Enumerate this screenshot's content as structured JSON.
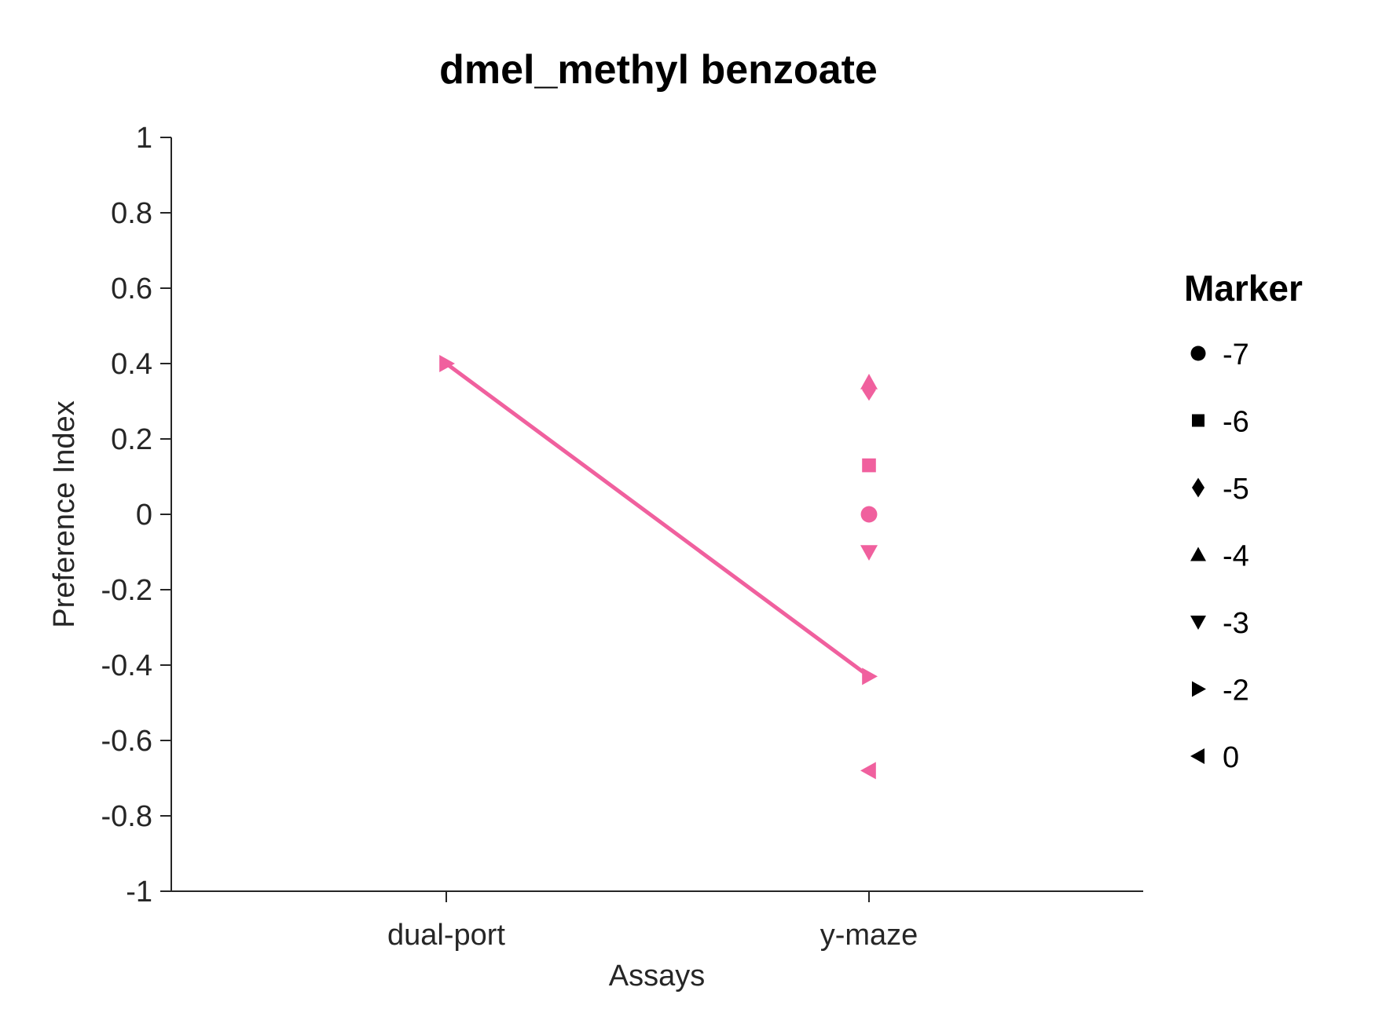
{
  "chart_data": {
    "type": "scatter",
    "title": "dmel_methyl benzoate",
    "xlabel": "Assays",
    "ylabel": "Preference Index",
    "categories": [
      "dual-port",
      "y-maze"
    ],
    "ylim": [
      -1,
      1
    ],
    "yticks": [
      "1",
      "0.8",
      "0.6",
      "0.4",
      "0.2",
      "0",
      "-0.2",
      "-0.4",
      "-0.6",
      "-0.8",
      "-1"
    ],
    "ytick_values": [
      1,
      0.8,
      0.6,
      0.4,
      0.2,
      0,
      -0.2,
      -0.4,
      -0.6,
      -0.8,
      -1
    ],
    "grid": false,
    "color": "#f0609e",
    "line": {
      "marker_group": "-2",
      "points": [
        {
          "x": "dual-port",
          "y": 0.4
        },
        {
          "x": "y-maze",
          "y": -0.43
        }
      ]
    },
    "points": [
      {
        "x": "dual-port",
        "y": 0.4,
        "marker": "-2"
      },
      {
        "x": "y-maze",
        "y": -0.43,
        "marker": "-2"
      },
      {
        "x": "y-maze",
        "y": 0.35,
        "marker": "-4"
      },
      {
        "x": "y-maze",
        "y": 0.33,
        "marker": "-5"
      },
      {
        "x": "y-maze",
        "y": 0.13,
        "marker": "-6"
      },
      {
        "x": "y-maze",
        "y": 0.0,
        "marker": "-7"
      },
      {
        "x": "y-maze",
        "y": -0.1,
        "marker": "-3"
      },
      {
        "x": "y-maze",
        "y": -0.68,
        "marker": "0"
      }
    ],
    "legend": {
      "title": "Marker",
      "placement": "right",
      "entries": [
        {
          "label": "-7",
          "shape": "circle"
        },
        {
          "label": "-6",
          "shape": "square"
        },
        {
          "label": "-5",
          "shape": "diamond"
        },
        {
          "label": "-4",
          "shape": "triangle-up"
        },
        {
          "label": "-3",
          "shape": "triangle-down"
        },
        {
          "label": "-2",
          "shape": "triangle-right"
        },
        {
          "label": "0",
          "shape": "triangle-left"
        }
      ]
    }
  }
}
